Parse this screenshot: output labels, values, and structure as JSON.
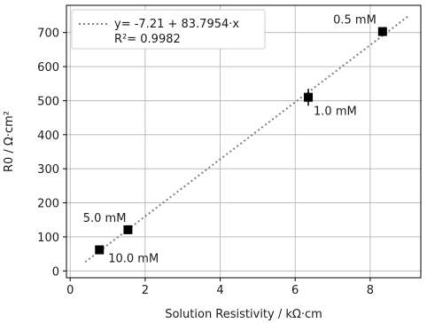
{
  "chart_data": {
    "type": "scatter",
    "xlabel": "Solution Resistivity    /    kΩ·cm",
    "ylabel": "R0    /    Ω·cm²",
    "xlim": [
      -0.1,
      9.35
    ],
    "ylim": [
      -20,
      780
    ],
    "xticks": [
      0,
      2,
      4,
      6,
      8
    ],
    "yticks": [
      0,
      100,
      200,
      300,
      400,
      500,
      600,
      700
    ],
    "grid": true,
    "legend_position": "top-left",
    "legend": {
      "line1": "y= -7.21 + 83.7954·x",
      "line2": "R²= 0.9982"
    },
    "fit": {
      "intercept": -7.21,
      "slope": 83.7954,
      "x_range": [
        0.4,
        9.0
      ],
      "style": "dotted",
      "color": "#7f7f7f"
    },
    "points": [
      {
        "x": 8.33,
        "y": 703,
        "label": "0.5 mM",
        "yerr": 0
      },
      {
        "x": 6.35,
        "y": 510,
        "label": "1.0 mM",
        "yerr": 25
      },
      {
        "x": 1.54,
        "y": 121,
        "label": "5.0 mM",
        "yerr": 0
      },
      {
        "x": 0.78,
        "y": 62,
        "label": "10.0 mM",
        "yerr": 0
      }
    ],
    "marker_color": "#000000"
  }
}
